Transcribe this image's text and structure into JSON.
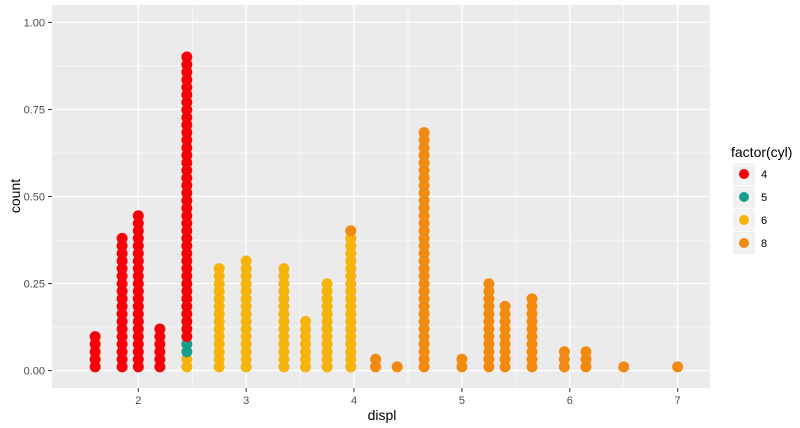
{
  "chart_data": {
    "type": "scatter",
    "subtype": "dotplot",
    "xlabel": "displ",
    "ylabel": "count",
    "xlim": [
      1.2,
      7.3
    ],
    "ylim": [
      -0.05,
      1.05
    ],
    "x_ticks": [
      "2",
      "3",
      "4",
      "5",
      "6",
      "7"
    ],
    "x_tick_values": [
      2,
      3,
      4,
      5,
      6,
      7
    ],
    "y_ticks": [
      "0.00",
      "0.25",
      "0.50",
      "0.75",
      "1.00"
    ],
    "y_tick_values": [
      0,
      0.25,
      0.5,
      0.75,
      1.0
    ],
    "panel_background": "#ebebeb",
    "grid": true,
    "legend": {
      "title": "factor(cyl)",
      "position": "right",
      "entries": [
        {
          "label": "4",
          "color": "#f8000a"
        },
        {
          "label": "5",
          "color": "#1a9e8c"
        },
        {
          "label": "6",
          "color": "#f5b30c"
        },
        {
          "label": "8",
          "color": "#f28a12"
        }
      ]
    },
    "dot_step": 0.0217,
    "stacks": [
      {
        "x": 1.6,
        "groups": [
          {
            "cyl": "4",
            "count": 5
          }
        ]
      },
      {
        "x": 1.85,
        "groups": [
          {
            "cyl": "4",
            "count": 18
          }
        ]
      },
      {
        "x": 2.0,
        "groups": [
          {
            "cyl": "4",
            "count": 21
          }
        ]
      },
      {
        "x": 2.2,
        "groups": [
          {
            "cyl": "4",
            "count": 6
          }
        ]
      },
      {
        "x": 2.45,
        "groups": [
          {
            "cyl": "6",
            "count": 2
          },
          {
            "cyl": "5",
            "count": 2
          },
          {
            "cyl": "4",
            "count": 38
          }
        ]
      },
      {
        "x": 2.75,
        "groups": [
          {
            "cyl": "6",
            "count": 14
          }
        ]
      },
      {
        "x": 3.0,
        "groups": [
          {
            "cyl": "6",
            "count": 15
          }
        ]
      },
      {
        "x": 3.35,
        "groups": [
          {
            "cyl": "6",
            "count": 14
          }
        ]
      },
      {
        "x": 3.55,
        "groups": [
          {
            "cyl": "6",
            "count": 7
          }
        ]
      },
      {
        "x": 3.75,
        "groups": [
          {
            "cyl": "6",
            "count": 12
          }
        ]
      },
      {
        "x": 3.97,
        "groups": [
          {
            "cyl": "6",
            "count": 18
          },
          {
            "cyl": "8",
            "count": 1
          }
        ]
      },
      {
        "x": 4.2,
        "groups": [
          {
            "cyl": "8",
            "count": 2
          }
        ]
      },
      {
        "x": 4.4,
        "groups": [
          {
            "cyl": "8",
            "count": 1
          }
        ]
      },
      {
        "x": 4.65,
        "groups": [
          {
            "cyl": "8",
            "count": 32
          }
        ]
      },
      {
        "x": 5.0,
        "groups": [
          {
            "cyl": "8",
            "count": 2
          }
        ]
      },
      {
        "x": 5.25,
        "groups": [
          {
            "cyl": "8",
            "count": 12
          }
        ]
      },
      {
        "x": 5.4,
        "groups": [
          {
            "cyl": "8",
            "count": 9
          }
        ]
      },
      {
        "x": 5.65,
        "groups": [
          {
            "cyl": "8",
            "count": 10
          }
        ]
      },
      {
        "x": 5.95,
        "groups": [
          {
            "cyl": "8",
            "count": 3
          }
        ]
      },
      {
        "x": 6.15,
        "groups": [
          {
            "cyl": "8",
            "count": 3
          }
        ]
      },
      {
        "x": 6.5,
        "groups": [
          {
            "cyl": "8",
            "count": 1
          }
        ]
      },
      {
        "x": 7.0,
        "groups": [
          {
            "cyl": "8",
            "count": 1
          }
        ]
      }
    ]
  }
}
